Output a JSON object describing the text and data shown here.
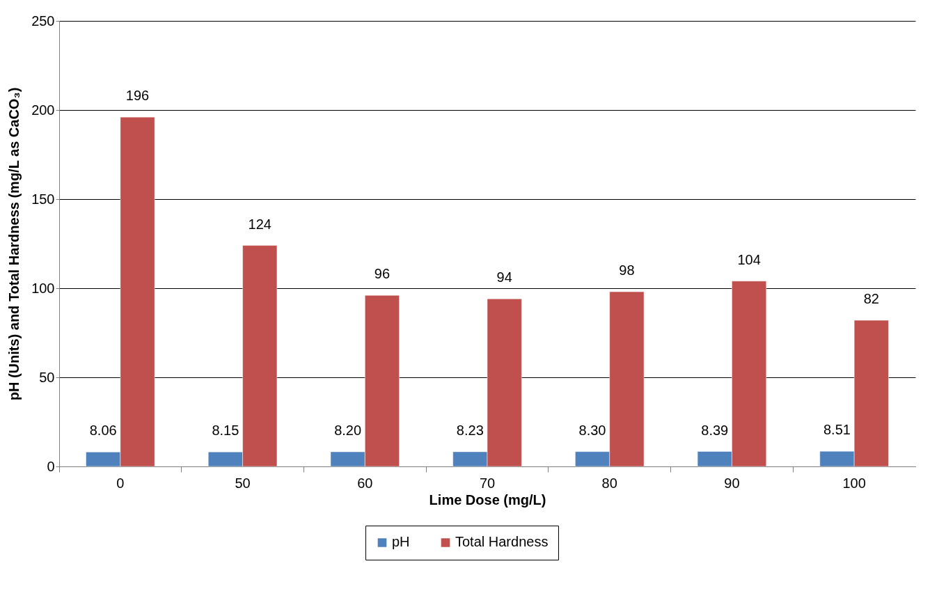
{
  "chart_data": {
    "type": "bar",
    "xlabel": "Lime Dose (mg/L)",
    "ylabel": "pH (Units) and Total Hardness (mg/L as CaCO₃)",
    "categories": [
      "0",
      "50",
      "60",
      "70",
      "80",
      "90",
      "100"
    ],
    "series": [
      {
        "name": "pH",
        "color": "#4f81bd",
        "values": [
          8.06,
          8.15,
          8.2,
          8.23,
          8.3,
          8.39,
          8.51
        ],
        "value_labels": [
          "8.06",
          "8.15",
          "8.20",
          "8.23",
          "8.30",
          "8.39",
          "8.51"
        ]
      },
      {
        "name": "Total Hardness",
        "color": "#c0504d",
        "values": [
          196,
          124,
          96,
          94,
          98,
          104,
          82
        ],
        "value_labels": [
          "196",
          "124",
          "96",
          "94",
          "98",
          "104",
          "82"
        ]
      }
    ],
    "ylim": [
      0,
      250
    ],
    "yticks": [
      0,
      50,
      100,
      150,
      200,
      250
    ],
    "grid": "y",
    "legend": "bottom"
  }
}
